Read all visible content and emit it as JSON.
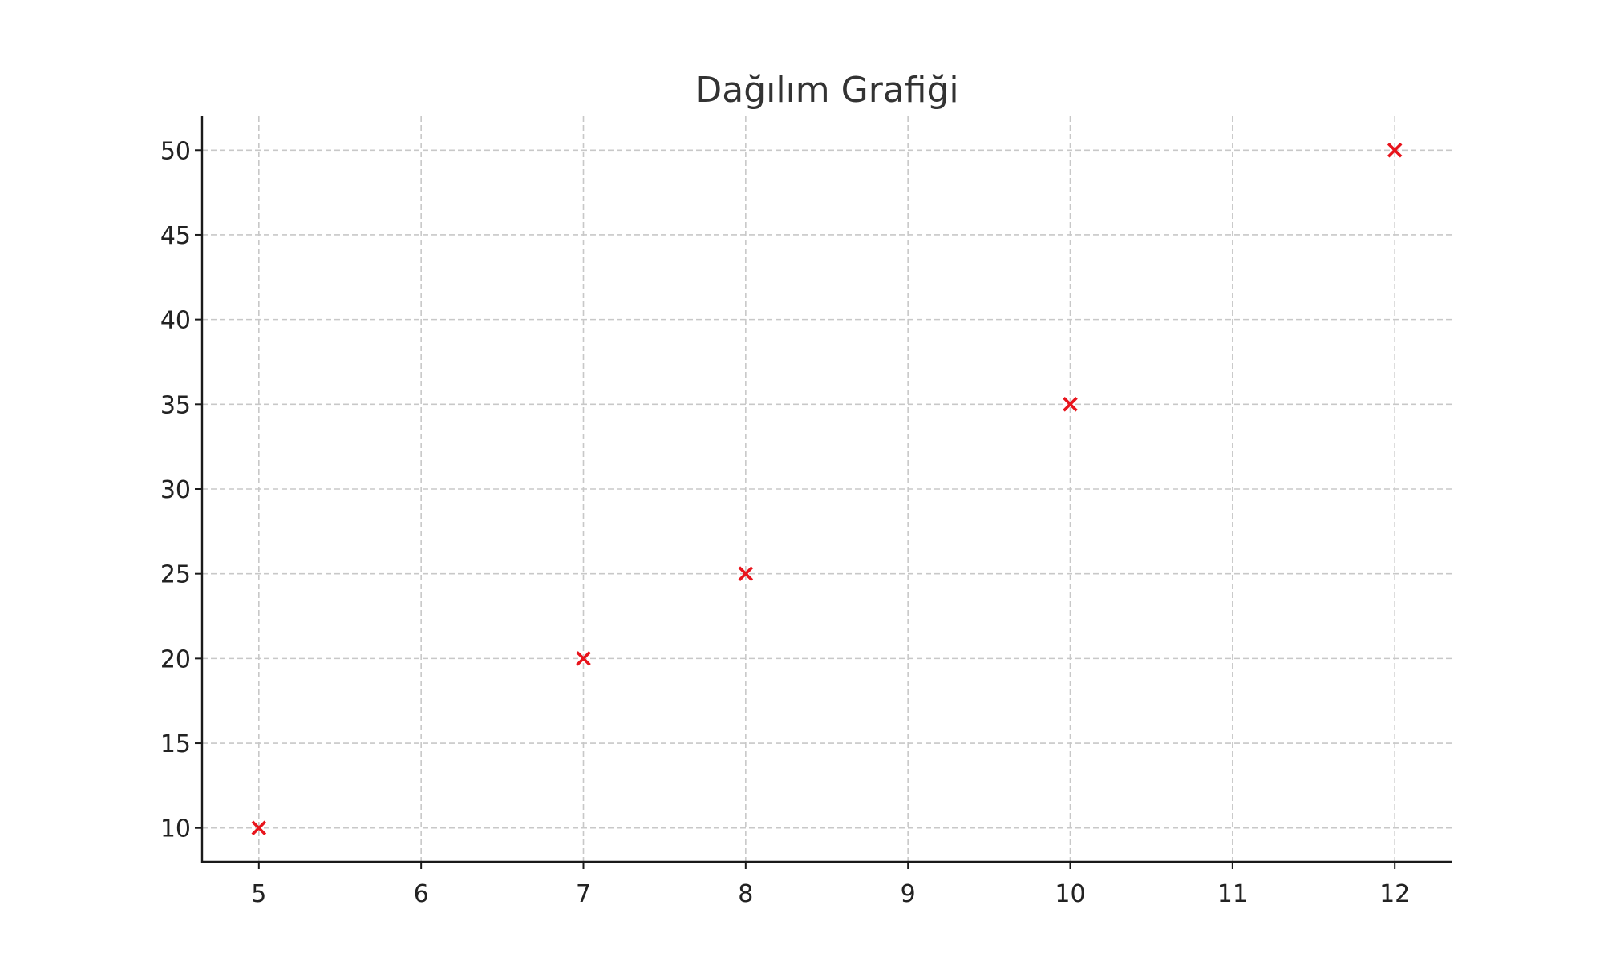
{
  "chart_data": {
    "type": "scatter",
    "title": "Dağılım Grafiği",
    "xlabel": "",
    "ylabel": "",
    "x": [
      5,
      7,
      8,
      10,
      12
    ],
    "y": [
      10,
      20,
      25,
      35,
      50
    ],
    "marker": "x",
    "marker_color": "#e8141c",
    "xlim": [
      4.65,
      12.35
    ],
    "ylim": [
      8,
      52
    ],
    "xticks": [
      5,
      6,
      7,
      8,
      9,
      10,
      11,
      12
    ],
    "yticks": [
      10,
      15,
      20,
      25,
      30,
      35,
      40,
      45,
      50
    ],
    "grid": true,
    "grid_style": "dashed",
    "legend": "none"
  }
}
